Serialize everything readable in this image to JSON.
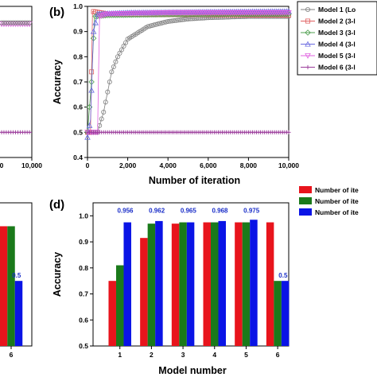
{
  "colors": {
    "m1": "#7f7f7f",
    "m2": "#e06060",
    "m3": "#4f9f4f",
    "m4": "#6a6ae0",
    "m5": "#e060e0",
    "m6": "#9a3a9a",
    "bar_red": "#e8141c",
    "bar_green": "#1a7a1a",
    "bar_blue": "#0a14e6",
    "label_blue": "#1a2ec8"
  },
  "chart_data": [
    {
      "panel": "a-partial",
      "type": "line",
      "xlim": [
        0,
        10000
      ],
      "visible_tick_labels": [
        "0",
        "10,000"
      ],
      "visible_traces": [
        {
          "marker": "model5-like",
          "level": 0.93
        },
        {
          "marker": "model6-like",
          "level": 0.5
        }
      ]
    },
    {
      "panel": "(b)",
      "type": "line",
      "xlabel": "Number of iteration",
      "ylabel": "Accuracy",
      "xlim": [
        0,
        10000
      ],
      "ylim": [
        0.4,
        1.0
      ],
      "xticks": [
        "0",
        "2,000",
        "4,000",
        "6,000",
        "8,000",
        "10,000"
      ],
      "yticks": [
        "0.4",
        "0.5",
        "0.6",
        "0.7",
        "0.8",
        "0.9",
        "1.0"
      ],
      "legend_position": "right",
      "series": [
        {
          "name": "Model 1 (Lo",
          "points": [
            [
              0,
              0.5
            ],
            [
              500,
              0.5
            ],
            [
              800,
              0.58
            ],
            [
              1000,
              0.66
            ],
            [
              1200,
              0.74
            ],
            [
              1500,
              0.8
            ],
            [
              2000,
              0.87
            ],
            [
              3000,
              0.92
            ],
            [
              4000,
              0.94
            ],
            [
              5000,
              0.95
            ],
            [
              6000,
              0.955
            ],
            [
              8000,
              0.96
            ],
            [
              10000,
              0.96
            ]
          ]
        },
        {
          "name": "Model 2 (3-l",
          "points": [
            [
              0,
              0.5
            ],
            [
              150,
              0.5
            ],
            [
              250,
              0.98
            ],
            [
              1000,
              0.97
            ],
            [
              3000,
              0.968
            ],
            [
              10000,
              0.965
            ]
          ]
        },
        {
          "name": "Model 3 (3-l",
          "points": [
            [
              0,
              0.5
            ],
            [
              200,
              0.7
            ],
            [
              350,
              0.96
            ],
            [
              1000,
              0.965
            ],
            [
              4000,
              0.968
            ],
            [
              10000,
              0.97
            ]
          ]
        },
        {
          "name": "Model 4 (3-l",
          "points": [
            [
              0,
              0.48
            ],
            [
              150,
              0.55
            ],
            [
              300,
              0.9
            ],
            [
              500,
              0.97
            ],
            [
              2000,
              0.975
            ],
            [
              6000,
              0.978
            ],
            [
              10000,
              0.98
            ]
          ]
        },
        {
          "name": "Model 5 (3-l",
          "points": [
            [
              0,
              0.5
            ],
            [
              500,
              0.5
            ],
            [
              600,
              0.96
            ],
            [
              1000,
              0.97
            ],
            [
              4000,
              0.975
            ],
            [
              10000,
              0.975
            ]
          ]
        },
        {
          "name": "Model 6 (3-l",
          "points": [
            [
              0,
              0.5
            ],
            [
              10000,
              0.5
            ]
          ]
        }
      ]
    },
    {
      "panel": "c-partial",
      "type": "bar",
      "categories": [
        "6"
      ],
      "series": [
        {
          "values": [
            0.96
          ]
        },
        {
          "values": [
            0.96
          ]
        },
        {
          "values": [
            0.75
          ]
        }
      ],
      "data_labels": [
        "",
        "",
        "0.5"
      ]
    },
    {
      "panel": "(d)",
      "type": "bar",
      "xlabel": "Model number",
      "ylabel": "Accuracy",
      "ylim": [
        0.5,
        1.05
      ],
      "yticks": [
        "0.5",
        "0.6",
        "0.7",
        "0.8",
        "0.9",
        "1.0"
      ],
      "categories": [
        "1",
        "2",
        "3",
        "4",
        "5",
        "6"
      ],
      "legend_position": "right",
      "series": [
        {
          "name": "Number of ite",
          "color": "red",
          "values": [
            0.75,
            0.915,
            0.97,
            0.975,
            0.975,
            0.975
          ]
        },
        {
          "name": "Number of ite",
          "color": "green",
          "values": [
            0.81,
            0.97,
            0.975,
            0.975,
            0.975,
            0.75
          ]
        },
        {
          "name": "Number of ite",
          "color": "blue",
          "values": [
            0.975,
            0.98,
            0.975,
            0.98,
            0.985,
            0.75
          ]
        }
      ],
      "data_labels": [
        "0.956",
        "0.962",
        "0.965",
        "0.968",
        "0.975",
        "0.5"
      ]
    }
  ]
}
